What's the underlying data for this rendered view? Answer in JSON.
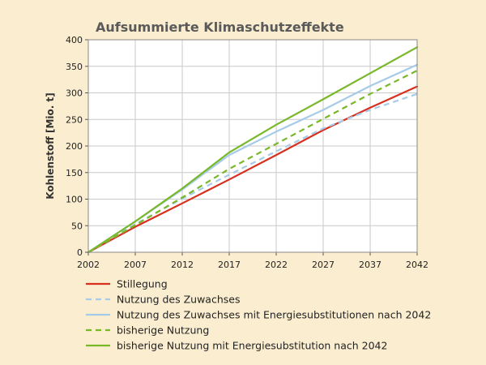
{
  "chart_data": {
    "type": "line",
    "title": "Aufsummierte Klimaschutzeffekte",
    "ylabel": "Kohlenstoff [Mio. t]",
    "xlabel": "",
    "x_ticks": [
      "2002",
      "2007",
      "2012",
      "2017",
      "2022",
      "2027",
      "2037",
      "2042"
    ],
    "y_ticks": [
      "0",
      "50",
      "100",
      "150",
      "200",
      "250",
      "300",
      "350",
      "400"
    ],
    "ylim": [
      0,
      400
    ],
    "grid": true,
    "legend_position": "bottom",
    "series": [
      {
        "name": "Stillegung",
        "color": "#d7301f",
        "dash": "solid",
        "x": [
          2002,
          2007,
          2012,
          2017,
          2022,
          2027,
          2037,
          2042
        ],
        "values": [
          0,
          48,
          92,
          137,
          183,
          230,
          272,
          312
        ]
      },
      {
        "name": "Nutzung des Zuwachses",
        "color": "#a6cbe8",
        "dash": "dashed",
        "x": [
          2002,
          2007,
          2012,
          2017,
          2022,
          2027,
          2037,
          2042
        ],
        "values": [
          0,
          53,
          101,
          146,
          190,
          233,
          268,
          298
        ]
      },
      {
        "name": "Nutzung des Zuwachses mit Energiesubstitutionen nach 2042",
        "color": "#a6cbe8",
        "dash": "solid",
        "x": [
          2002,
          2007,
          2012,
          2017,
          2022,
          2027,
          2037,
          2042
        ],
        "values": [
          0,
          58,
          118,
          183,
          227,
          268,
          313,
          353
        ]
      },
      {
        "name": "bisherige Nutzung",
        "color": "#79b829",
        "dash": "dashed",
        "x": [
          2002,
          2007,
          2012,
          2017,
          2022,
          2027,
          2037,
          2042
        ],
        "values": [
          0,
          51,
          103,
          157,
          204,
          251,
          298,
          342
        ]
      },
      {
        "name": "bisherige Nutzung mit Energiesubstitution nach 2042",
        "color": "#79b829",
        "dash": "solid",
        "x": [
          2002,
          2007,
          2012,
          2017,
          2022,
          2027,
          2037,
          2042
        ],
        "values": [
          0,
          58,
          120,
          188,
          240,
          288,
          337,
          386
        ]
      }
    ]
  }
}
